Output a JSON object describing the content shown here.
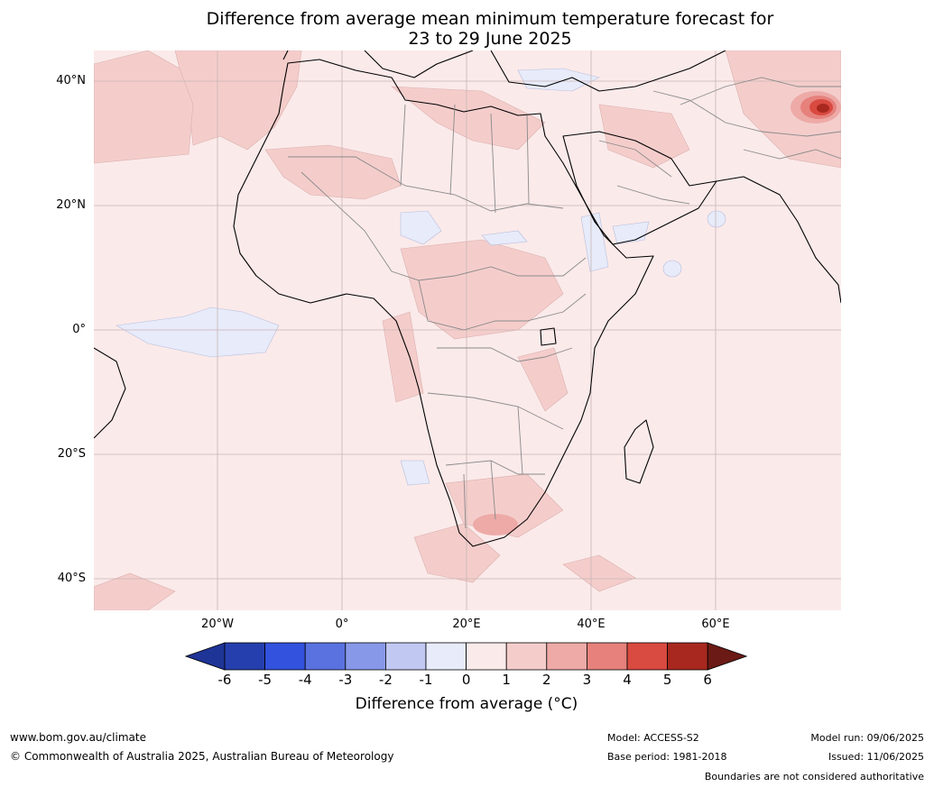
{
  "title_line1": "Difference from average mean minimum temperature forecast for",
  "title_line2": "23 to 29 June 2025",
  "lat_labels": [
    "40°N",
    "20°N",
    "0°",
    "20°S",
    "40°S"
  ],
  "lon_labels": [
    "20°W",
    "0°",
    "20°E",
    "40°E",
    "60°E"
  ],
  "colorbar": {
    "ticks": [
      "-6",
      "-5",
      "-4",
      "-3",
      "-2",
      "-1",
      "0",
      "1",
      "2",
      "3",
      "4",
      "5",
      "6"
    ],
    "colors": [
      "#1f3497",
      "#263fae",
      "#3352dd",
      "#5a72e0",
      "#8898e8",
      "#c1c8f2",
      "#e7ebfa",
      "#fbeaea",
      "#f4cdcb",
      "#edaaa7",
      "#e6817c",
      "#d94a40",
      "#a8281f",
      "#6b1a15"
    ],
    "label": "Difference from average (°C)"
  },
  "footer": {
    "site": "www.bom.gov.au/climate",
    "copyright": "© Commonwealth of Australia 2025, Australian Bureau of Meteorology",
    "model": "Model: ACCESS-S2",
    "base_period": "Base period: 1981-2018",
    "model_run": "Model run: 09/06/2025",
    "issued": "Issued: 11/06/2025",
    "disclaimer": "Boundaries are not considered authoritative"
  }
}
